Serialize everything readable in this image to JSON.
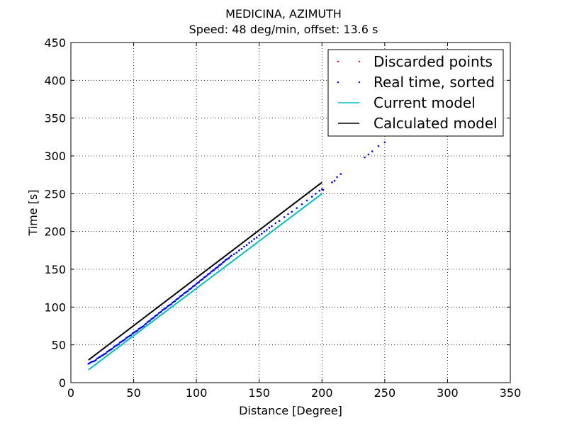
{
  "chart_data": {
    "type": "scatter",
    "title": "MEDICINA, AZIMUTH",
    "subtitle": "Speed: 48 deg/min, offset: 13.6 s",
    "xlabel": "Distance [Degree]",
    "ylabel": "Time [s]",
    "xlim": [
      0,
      350
    ],
    "ylim": [
      0,
      450
    ],
    "xticks": [
      0,
      50,
      100,
      150,
      200,
      250,
      300,
      350
    ],
    "yticks": [
      0,
      50,
      100,
      150,
      200,
      250,
      300,
      350,
      400,
      450
    ],
    "grid": true,
    "legend_position": "top-right",
    "series": [
      {
        "name": "Discarded points",
        "kind": "points",
        "color": "#ff0000",
        "points": []
      },
      {
        "name": "Real time, sorted",
        "kind": "points",
        "color": "#0000ff",
        "points": [
          [
            14,
            25
          ],
          [
            15,
            26
          ],
          [
            16,
            27
          ],
          [
            17,
            28
          ],
          [
            18,
            28
          ],
          [
            19,
            29
          ],
          [
            20,
            30
          ],
          [
            21,
            32
          ],
          [
            22,
            33
          ],
          [
            23,
            34
          ],
          [
            24,
            35
          ],
          [
            25,
            36
          ],
          [
            26,
            37
          ],
          [
            27,
            38
          ],
          [
            28,
            39
          ],
          [
            29,
            41
          ],
          [
            30,
            42
          ],
          [
            31,
            43
          ],
          [
            32,
            44
          ],
          [
            33,
            45
          ],
          [
            34,
            47
          ],
          [
            35,
            48
          ],
          [
            36,
            49
          ],
          [
            37,
            50
          ],
          [
            38,
            51
          ],
          [
            39,
            53
          ],
          [
            40,
            54
          ],
          [
            41,
            55
          ],
          [
            42,
            56
          ],
          [
            43,
            57
          ],
          [
            44,
            59
          ],
          [
            45,
            60
          ],
          [
            46,
            61
          ],
          [
            47,
            62
          ],
          [
            48,
            63
          ],
          [
            49,
            65
          ],
          [
            50,
            66
          ],
          [
            51,
            67
          ],
          [
            52,
            68
          ],
          [
            53,
            69
          ],
          [
            54,
            71
          ],
          [
            55,
            72
          ],
          [
            56,
            73
          ],
          [
            57,
            74
          ],
          [
            58,
            75
          ],
          [
            59,
            77
          ],
          [
            60,
            78
          ],
          [
            61,
            80
          ],
          [
            62,
            81
          ],
          [
            63,
            82
          ],
          [
            64,
            84
          ],
          [
            65,
            85
          ],
          [
            66,
            86
          ],
          [
            67,
            88
          ],
          [
            68,
            89
          ],
          [
            69,
            90
          ],
          [
            70,
            92
          ],
          [
            71,
            93
          ],
          [
            72,
            94
          ],
          [
            73,
            96
          ],
          [
            74,
            97
          ],
          [
            75,
            98
          ],
          [
            76,
            99
          ],
          [
            77,
            101
          ],
          [
            78,
            102
          ],
          [
            79,
            103
          ],
          [
            80,
            104
          ],
          [
            81,
            106
          ],
          [
            82,
            107
          ],
          [
            83,
            108
          ],
          [
            84,
            110
          ],
          [
            85,
            111
          ],
          [
            86,
            112
          ],
          [
            87,
            114
          ],
          [
            88,
            115
          ],
          [
            89,
            116
          ],
          [
            90,
            118
          ],
          [
            91,
            119
          ],
          [
            92,
            120
          ],
          [
            93,
            121
          ],
          [
            94,
            123
          ],
          [
            95,
            124
          ],
          [
            96,
            125
          ],
          [
            97,
            127
          ],
          [
            98,
            128
          ],
          [
            99,
            129
          ],
          [
            100,
            131
          ],
          [
            101,
            132
          ],
          [
            102,
            133
          ],
          [
            103,
            135
          ],
          [
            104,
            136
          ],
          [
            105,
            137
          ],
          [
            106,
            139
          ],
          [
            107,
            140
          ],
          [
            108,
            141
          ],
          [
            109,
            143
          ],
          [
            110,
            144
          ],
          [
            111,
            145
          ],
          [
            112,
            147
          ],
          [
            113,
            148
          ],
          [
            114,
            149
          ],
          [
            115,
            151
          ],
          [
            116,
            152
          ],
          [
            117,
            153
          ],
          [
            118,
            155
          ],
          [
            119,
            156
          ],
          [
            120,
            157
          ],
          [
            121,
            159
          ],
          [
            122,
            160
          ],
          [
            123,
            162
          ],
          [
            124,
            163
          ],
          [
            125,
            164
          ],
          [
            126,
            165
          ],
          [
            127,
            167
          ],
          [
            128,
            168
          ],
          [
            130,
            170
          ],
          [
            132,
            172
          ],
          [
            134,
            175
          ],
          [
            136,
            177
          ],
          [
            138,
            180
          ],
          [
            140,
            182
          ],
          [
            142,
            185
          ],
          [
            144,
            187
          ],
          [
            146,
            190
          ],
          [
            148,
            192
          ],
          [
            150,
            195
          ],
          [
            152,
            197
          ],
          [
            154,
            200
          ],
          [
            156,
            202
          ],
          [
            158,
            205
          ],
          [
            160,
            207
          ],
          [
            163,
            211
          ],
          [
            166,
            214
          ],
          [
            170,
            219
          ],
          [
            173,
            223
          ],
          [
            176,
            226
          ],
          [
            180,
            231
          ],
          [
            184,
            236
          ],
          [
            188,
            241
          ],
          [
            192,
            246
          ],
          [
            195,
            250
          ],
          [
            198,
            254
          ],
          [
            200,
            256
          ],
          [
            201,
            255
          ],
          [
            208,
            265
          ],
          [
            210,
            267
          ],
          [
            212,
            272
          ],
          [
            215,
            276
          ],
          [
            234,
            298
          ],
          [
            237,
            302
          ],
          [
            240,
            306
          ],
          [
            245,
            313
          ],
          [
            250,
            318
          ]
        ]
      },
      {
        "name": "Current model",
        "kind": "line",
        "color": "#00bfbf",
        "points": [
          [
            14,
            17
          ],
          [
            200,
            250
          ]
        ]
      },
      {
        "name": "Calculated model",
        "kind": "line",
        "color": "#000000",
        "points": [
          [
            14,
            30
          ],
          [
            200,
            265
          ]
        ]
      }
    ]
  }
}
